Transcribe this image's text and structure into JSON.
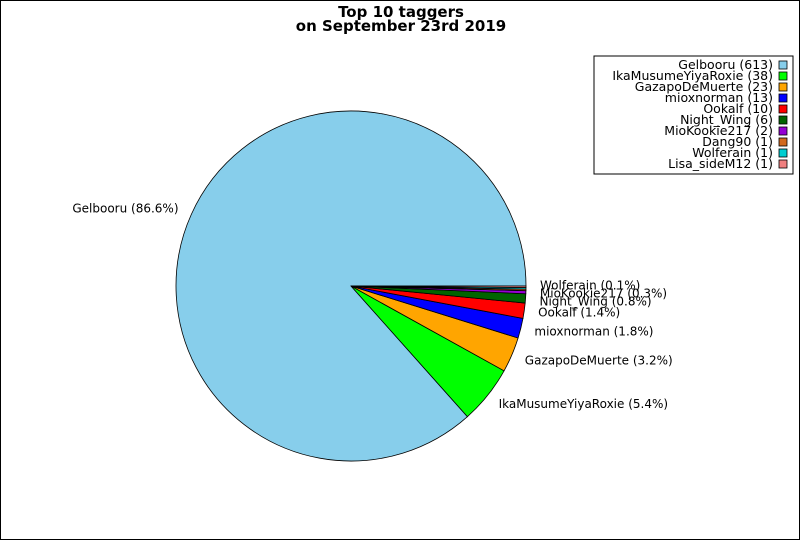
{
  "chart_data": {
    "type": "pie",
    "title": "Top 10 taggers",
    "subtitle": "on September 23rd 2019",
    "legend_position": "top-right",
    "slices": [
      {
        "name": "Gelbooru",
        "value": 613,
        "percent_label": "Gelbooru (86.6%)",
        "legend_label": "Gelbooru (613)",
        "color": "#87ceeb"
      },
      {
        "name": "IkaMusumeYiyaRoxie",
        "value": 38,
        "percent_label": "IkaMusumeYiyaRoxie (5.4%)",
        "legend_label": "IkaMusumeYiyaRoxie (38)",
        "color": "#00ff00"
      },
      {
        "name": "GazapoDeMuerte",
        "value": 23,
        "percent_label": "GazapoDeMuerte (3.2%)",
        "legend_label": "GazapoDeMuerte (23)",
        "color": "#ffa500"
      },
      {
        "name": "mioxnorman",
        "value": 13,
        "percent_label": "mioxnorman (1.8%)",
        "legend_label": "mioxnorman (13)",
        "color": "#0000ff"
      },
      {
        "name": "Ookalf",
        "value": 10,
        "percent_label": "Ookalf (1.4%)",
        "legend_label": "Ookalf (10)",
        "color": "#ff0000"
      },
      {
        "name": "Night_Wing",
        "value": 6,
        "percent_label": "Night_Wing (0.8%)",
        "legend_label": "Night_Wing (6)",
        "color": "#006400"
      },
      {
        "name": "MioKookie217",
        "value": 2,
        "percent_label": "MioKookie217 (0.3%)",
        "legend_label": "MioKookie217 (2)",
        "color": "#9400d3"
      },
      {
        "name": "Dang90",
        "value": 1,
        "percent_label": "",
        "legend_label": "Dang90 (1)",
        "color": "#d2691e"
      },
      {
        "name": "Wolferain",
        "value": 1,
        "percent_label": "Wolferain (0.1%)",
        "legend_label": "Wolferain (1)",
        "color": "#00ced1"
      },
      {
        "name": "Lisa_sideM12",
        "value": 1,
        "percent_label": "",
        "legend_label": "Lisa_sideM12 (1)",
        "color": "#f08080"
      }
    ]
  }
}
